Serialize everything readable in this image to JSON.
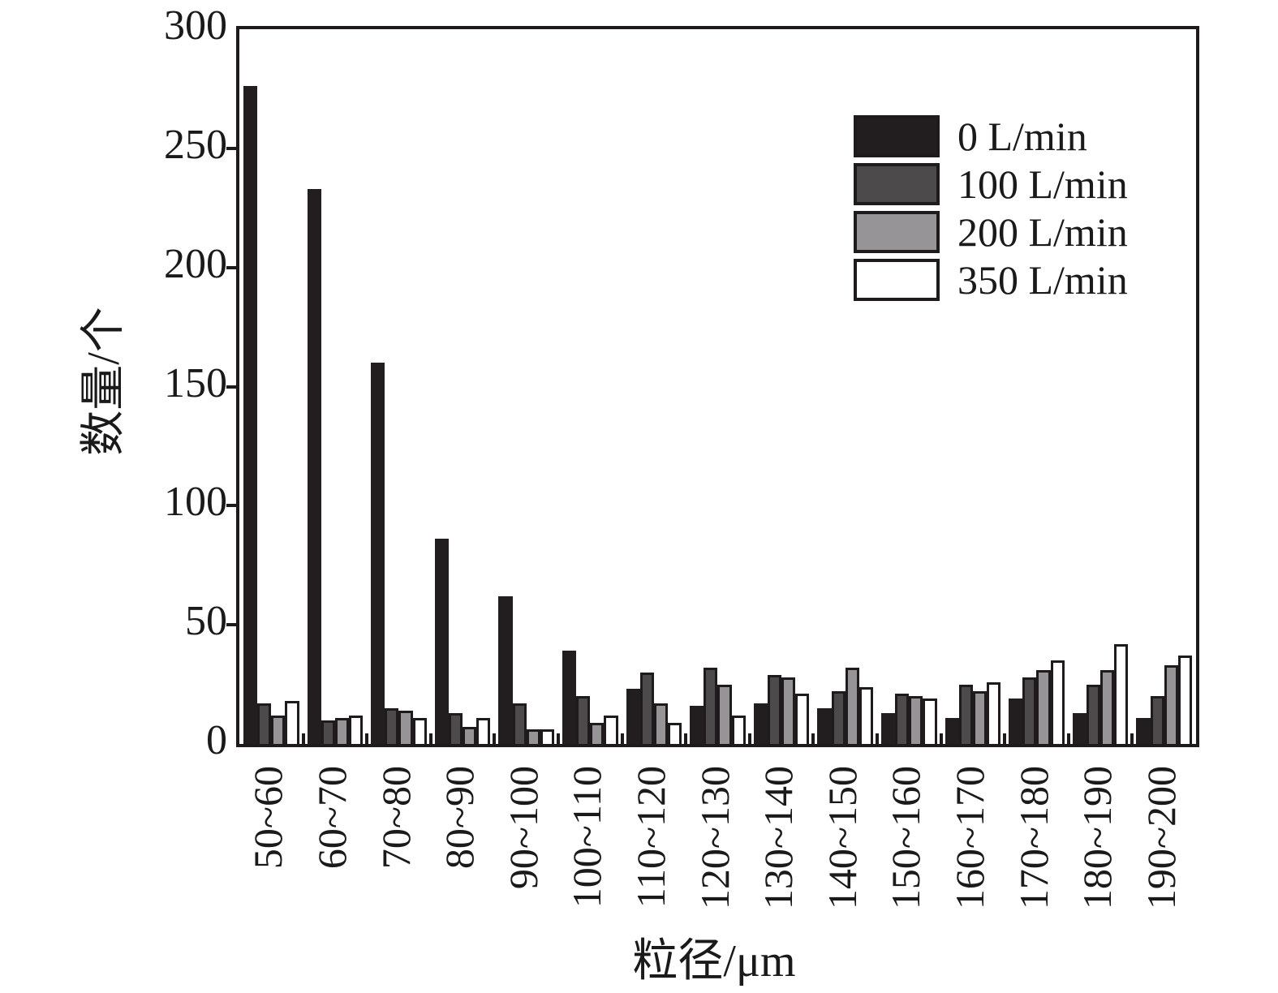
{
  "chart_data": {
    "type": "bar",
    "title": "",
    "xlabel": "粒径/μm",
    "ylabel": "数量/个",
    "ylim": [
      0,
      300
    ],
    "ytick_step": 50,
    "ytick_labels": [
      "0",
      "50",
      "100",
      "150",
      "200",
      "250",
      "300"
    ],
    "grid": false,
    "legend_position": "top-right-inside",
    "categories": [
      "50~60",
      "60~70",
      "70~80",
      "80~90",
      "90~100",
      "100~110",
      "110~120",
      "120~130",
      "130~140",
      "140~150",
      "150~160",
      "160~170",
      "170~180",
      "180~190",
      "190~200"
    ],
    "series": [
      {
        "name": "0 L/min",
        "color": "#221e1f",
        "values": [
          276,
          233,
          160,
          86,
          62,
          39,
          23,
          16,
          17,
          15,
          13,
          11,
          19,
          13,
          11
        ]
      },
      {
        "name": "100 L/min",
        "color": "#4d4a4b",
        "values": [
          17,
          10,
          15,
          13,
          17,
          20,
          30,
          32,
          29,
          22,
          21,
          25,
          28,
          25,
          20
        ]
      },
      {
        "name": "200 L/min",
        "color": "#969496",
        "values": [
          12,
          11,
          14,
          7,
          6,
          9,
          17,
          25,
          28,
          32,
          20,
          22,
          31,
          31,
          33
        ]
      },
      {
        "name": "350 L/min",
        "color": "#ffffff",
        "values": [
          18,
          12,
          11,
          11,
          6,
          12,
          9,
          12,
          21,
          24,
          19,
          26,
          35,
          42,
          37
        ]
      }
    ],
    "axis_color": "#1f1b1c",
    "background_color": "#ffffff"
  }
}
